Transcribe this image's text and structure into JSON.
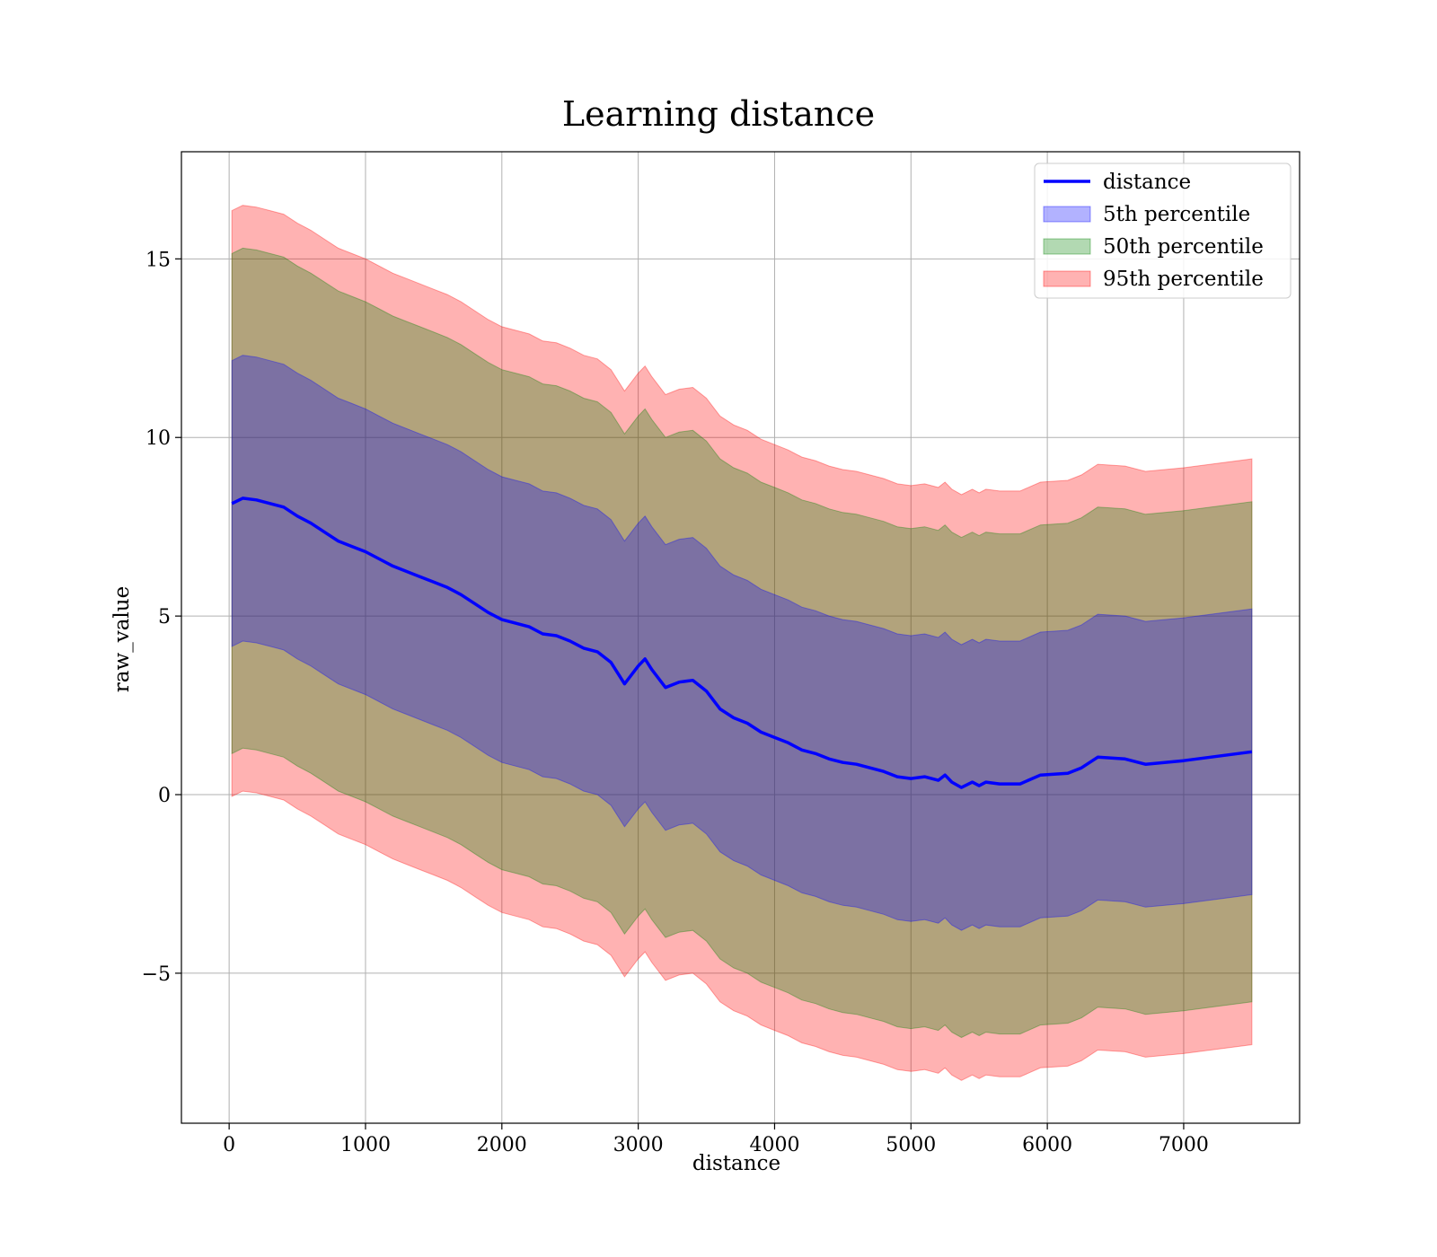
{
  "chart_data": {
    "type": "line",
    "title": "Learning distance",
    "xlabel": "distance",
    "ylabel": "raw_value",
    "xlim": [
      -350,
      7850
    ],
    "ylim": [
      -9.2,
      18.0
    ],
    "xticks": [
      0,
      1000,
      2000,
      3000,
      4000,
      5000,
      6000,
      7000
    ],
    "xtick_labels": [
      "0",
      "1000",
      "2000",
      "3000",
      "4000",
      "5000",
      "6000",
      "7000"
    ],
    "yticks": [
      -5,
      0,
      5,
      10,
      15
    ],
    "ytick_labels": [
      "−5",
      "0",
      "5",
      "10",
      "15"
    ],
    "grid": true,
    "legend_position": "top-right",
    "legend": [
      "distance",
      "5th percentile",
      "50th percentile",
      "95th percentile"
    ],
    "colors": {
      "line": "#0000ff",
      "band_5": "#0000ff",
      "band_50": "#008000",
      "band_95": "#ff0000"
    },
    "x": [
      20,
      100,
      200,
      300,
      400,
      500,
      600,
      700,
      800,
      900,
      1000,
      1100,
      1200,
      1300,
      1400,
      1500,
      1600,
      1700,
      1800,
      1900,
      2000,
      2100,
      2200,
      2300,
      2400,
      2500,
      2600,
      2700,
      2800,
      2900,
      3000,
      3050,
      3100,
      3200,
      3300,
      3400,
      3500,
      3600,
      3700,
      3800,
      3900,
      4000,
      4100,
      4200,
      4300,
      4400,
      4500,
      4600,
      4700,
      4800,
      4900,
      5000,
      5100,
      5200,
      5250,
      5300,
      5370,
      5450,
      5500,
      5550,
      5650,
      5800,
      5950,
      6150,
      6250,
      6370,
      6570,
      6720,
      7000,
      7500
    ],
    "series": [
      {
        "name": "distance",
        "values": [
          8.15,
          8.3,
          8.25,
          8.15,
          8.05,
          7.8,
          7.6,
          7.35,
          7.1,
          6.95,
          6.8,
          6.6,
          6.4,
          6.25,
          6.1,
          5.95,
          5.8,
          5.6,
          5.35,
          5.1,
          4.9,
          4.8,
          4.7,
          4.5,
          4.45,
          4.3,
          4.1,
          4.0,
          3.7,
          3.1,
          3.6,
          3.8,
          3.5,
          3.0,
          3.15,
          3.2,
          2.9,
          2.4,
          2.15,
          2.0,
          1.75,
          1.6,
          1.45,
          1.25,
          1.15,
          1.0,
          0.9,
          0.85,
          0.75,
          0.65,
          0.5,
          0.45,
          0.5,
          0.4,
          0.55,
          0.35,
          0.2,
          0.35,
          0.25,
          0.35,
          0.3,
          0.3,
          0.55,
          0.6,
          0.75,
          1.05,
          1.0,
          0.85,
          0.95,
          1.2
        ]
      }
    ],
    "bands": [
      {
        "name": "95th percentile",
        "lower_offset": -8.2,
        "upper_offset": 8.2
      },
      {
        "name": "50th percentile",
        "lower_offset": -7.0,
        "upper_offset": 7.0
      },
      {
        "name": "5th percentile",
        "lower_offset": -4.0,
        "upper_offset": 4.0
      }
    ]
  }
}
